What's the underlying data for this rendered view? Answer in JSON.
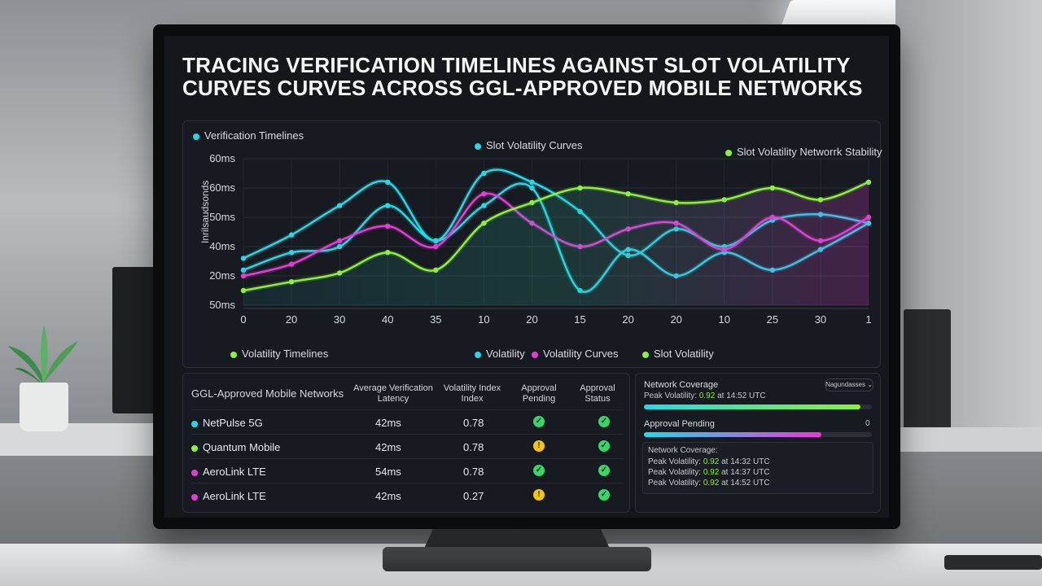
{
  "title": "TRACING VERIFICATION TIMELINES AGAINST SLOT VOLATILITY CURVES CURVES ACROSS GGL-APPROVED MOBILE NETWORKS",
  "colors": {
    "cyan": "#23d9e8",
    "magenta": "#e63bd6",
    "lime": "#8df03a"
  },
  "chart": {
    "legend_top": [
      {
        "label": "Verification Timelines",
        "color": "#23d9e8"
      },
      {
        "label": "Slot Volatility Curves",
        "color": "#23d9e8"
      },
      {
        "label": "Slot Volatility Networrk Stability",
        "color": "#8df03a"
      }
    ],
    "legend_bottom": [
      {
        "label": "Volatility Timelines",
        "color": "#8df03a"
      },
      {
        "label": "Volatility",
        "color": "#23d9e8"
      },
      {
        "label": "Volatility Curves",
        "color": "#e63bd6"
      },
      {
        "label": "Slot Volatility",
        "color": "#8df03a"
      }
    ],
    "y_axis_label": "Inrilsaudsonds"
  },
  "chart_data": {
    "type": "line",
    "x": [
      "0",
      "20",
      "30",
      "40",
      "35",
      "10",
      "20",
      "15",
      "20",
      "20",
      "10",
      "25",
      "30",
      "1"
    ],
    "y_tick_labels": [
      "60ms",
      "60ms",
      "50ms",
      "40ms",
      "20ms",
      "50ms"
    ],
    "ylabel": "Inrilsaudsonds",
    "grid": true,
    "series": [
      {
        "name": "Verification Timelines",
        "color": "#23d9e8",
        "values": [
          36,
          44,
          54,
          62,
          42,
          65,
          62,
          52,
          37,
          46,
          40,
          49,
          51,
          48
        ]
      },
      {
        "name": "Volatility",
        "color": "#23d9e8",
        "values": [
          32,
          38,
          40,
          54,
          42,
          54,
          60,
          25,
          39,
          30,
          38,
          32,
          39,
          48
        ]
      },
      {
        "name": "Volatility Curves",
        "color": "#e63bd6",
        "values": [
          30,
          34,
          42,
          47,
          40,
          58,
          48,
          40,
          46,
          48,
          39,
          50,
          42,
          50
        ]
      },
      {
        "name": "Slot Volatility",
        "color": "#8df03a",
        "values": [
          25,
          28,
          31,
          38,
          32,
          48,
          55,
          60,
          58,
          55,
          56,
          60,
          56,
          62
        ]
      }
    ]
  },
  "table": {
    "headers": [
      "GGL-Approved Mobile Networks",
      "Average Verification Latency",
      "Volatility Index Index",
      "Approval Pending",
      "Approval Status"
    ],
    "rows": [
      {
        "name": "NetPulse 5G",
        "color": "#23d9e8",
        "latency": "42ms",
        "index": "0.78",
        "pending": "ok",
        "status": "ok"
      },
      {
        "name": "Quantum Mobile",
        "color": "#8df03a",
        "latency": "42ms",
        "index": "0.78",
        "pending": "warn",
        "status": "ok"
      },
      {
        "name": "AeroLink LTE",
        "color": "#e63bd6",
        "latency": "54ms",
        "index": "0.78",
        "pending": "ok",
        "status": "ok"
      },
      {
        "name": "AeroLink LTE",
        "color": "#e63bd6",
        "latency": "42ms",
        "index": "0.27",
        "pending": "warn",
        "status": "ok"
      }
    ]
  },
  "side": {
    "coverage_label": "Network Coverage",
    "dropdown_label": "Nagundasses",
    "peak_prefix": "Peak Volatility:",
    "peak_value": "0.92",
    "peak_suffix": "at 14:52 UTC",
    "coverage_progress": 0.95,
    "pending_label": "Approval Pending",
    "pending_badge": "0",
    "pending_progress": 0.78,
    "box_title": "Network Coverage:",
    "box_lines": [
      {
        "prefix": "Peak Volatility:",
        "value": "0.92",
        "suffix": "at 14:32 UTC"
      },
      {
        "prefix": "Peak Volatility:",
        "value": "0.92",
        "suffix": "at 14:37 UTC"
      },
      {
        "prefix": "Peak Volatility:",
        "value": "0.92",
        "suffix": "at 14:52 UTC"
      }
    ]
  }
}
